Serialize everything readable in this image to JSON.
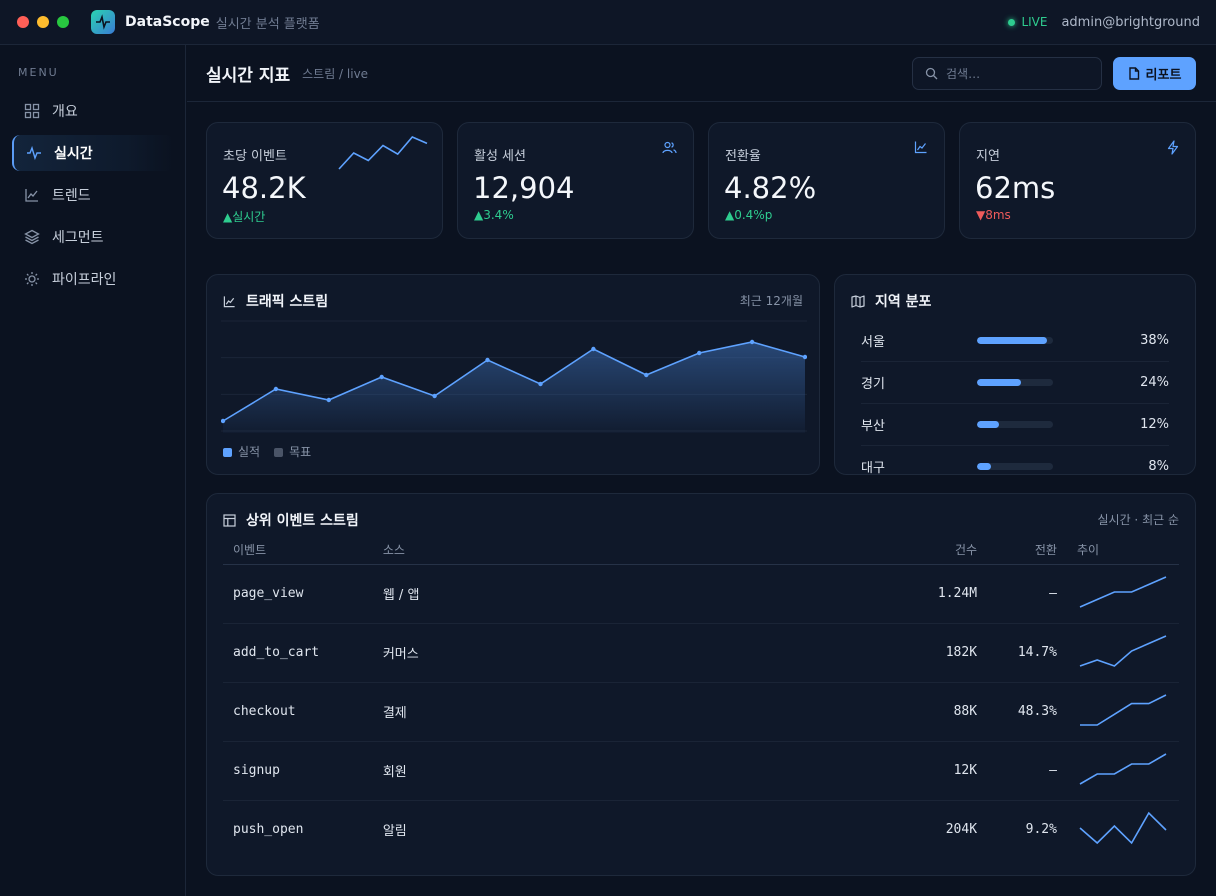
{
  "app": {
    "name": "DataScope",
    "subtitle": "실시간 분석 플랫폼",
    "live_label": "LIVE",
    "user": "admin@brightground"
  },
  "colors": {
    "accent": "#5ea2ff",
    "up": "#2ecc8f",
    "down": "#ef5b5b",
    "bg": "#0b1220"
  },
  "sidebar": {
    "menu_label": "MENU",
    "items": [
      {
        "label": "개요",
        "icon": "grid-icon"
      },
      {
        "label": "실시간",
        "icon": "pulse-icon",
        "active": true
      },
      {
        "label": "트렌드",
        "icon": "trend-icon"
      },
      {
        "label": "세그먼트",
        "icon": "layers-icon"
      },
      {
        "label": "파이프라인",
        "icon": "sun-icon"
      }
    ]
  },
  "header": {
    "title": "실시간 지표",
    "breadcrumb": "스트림 / live",
    "search_placeholder": "검색…",
    "report_label": "리포트"
  },
  "kpis": [
    {
      "label": "초당 이벤트",
      "value": "48.2K",
      "delta": "▲실시간",
      "direction": "up",
      "sparkline": [
        20,
        35,
        28,
        42,
        34,
        50,
        44
      ]
    },
    {
      "label": "활성 세션",
      "value": "12,904",
      "delta": "▲3.4%",
      "direction": "up",
      "icon": "users-icon"
    },
    {
      "label": "전환율",
      "value": "4.82%",
      "delta": "▲0.4%p",
      "direction": "up",
      "icon": "chart-line-icon"
    },
    {
      "label": "지연",
      "value": "62ms",
      "delta": "▼8ms",
      "direction": "down",
      "icon": "bolt-icon"
    }
  ],
  "traffic": {
    "title": "트래픽 스트림",
    "period": "최근 12개월",
    "legend": [
      "실적",
      "목표"
    ],
    "chart_data": {
      "type": "area",
      "series": [
        {
          "name": "실적",
          "values": [
            10,
            42,
            31,
            54,
            35,
            71,
            47,
            82,
            56,
            78,
            89,
            74
          ]
        }
      ],
      "ylim": [
        0,
        110
      ],
      "grid": true
    }
  },
  "regions": {
    "title": "지역 분포",
    "rows": [
      {
        "name": "서울",
        "value": 0.92,
        "pct": "38%"
      },
      {
        "name": "경기",
        "value": 0.58,
        "pct": "24%"
      },
      {
        "name": "부산",
        "value": 0.29,
        "pct": "12%"
      },
      {
        "name": "대구",
        "value": 0.19,
        "pct": "8%"
      }
    ]
  },
  "events": {
    "title": "상위 이벤트 스트림",
    "meta": "실시간 · 최근 순",
    "columns": [
      "이벤트",
      "소스",
      "건수",
      "전환",
      "추이"
    ],
    "rows": [
      {
        "event": "page_view",
        "source": "웹 / 앱",
        "count": "1.24M",
        "conv": "—",
        "trend": [
          10,
          20,
          30,
          30,
          40,
          50
        ]
      },
      {
        "event": "add_to_cart",
        "source": "커머스",
        "count": "182K",
        "conv": "14.7%",
        "trend": [
          10,
          18,
          10,
          30,
          40,
          50
        ]
      },
      {
        "event": "checkout",
        "source": "결제",
        "count": "88K",
        "conv": "48.3%",
        "trend": [
          10,
          10,
          25,
          40,
          40,
          52
        ]
      },
      {
        "event": "signup",
        "source": "회원",
        "count": "12K",
        "conv": "—",
        "trend": [
          10,
          22,
          22,
          34,
          34,
          46
        ]
      },
      {
        "event": "push_open",
        "source": "알림",
        "count": "204K",
        "conv": "9.2%",
        "trend": [
          30,
          15,
          32,
          15,
          45,
          28
        ]
      }
    ]
  }
}
